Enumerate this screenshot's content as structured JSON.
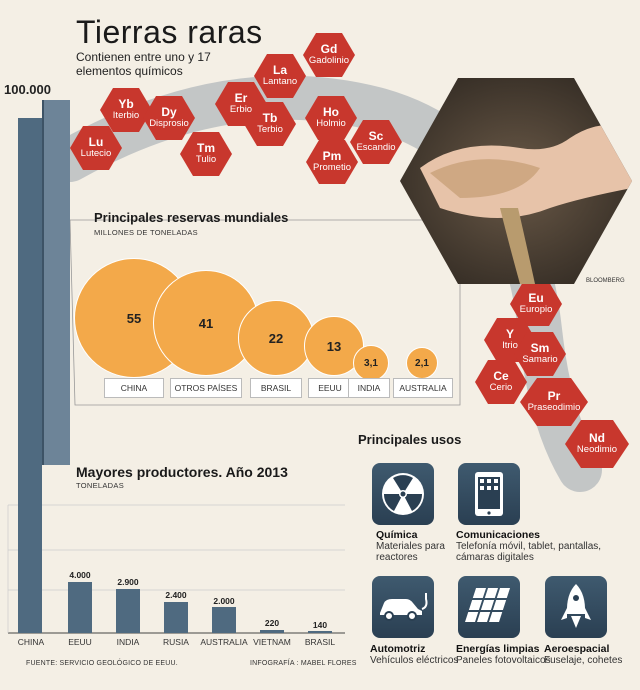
{
  "title": "Tierras raras",
  "subtitle": "Contienen entre uno y 17 elementos químicos",
  "big_value": "100.000",
  "elements": [
    {
      "sym": "Gd",
      "name": "Gadolinio"
    },
    {
      "sym": "La",
      "name": "Lantano"
    },
    {
      "sym": "Yb",
      "name": "Iterbio"
    },
    {
      "sym": "Dy",
      "name": "Disprosio"
    },
    {
      "sym": "Er",
      "name": "Erbio"
    },
    {
      "sym": "Tb",
      "name": "Terbio"
    },
    {
      "sym": "Ho",
      "name": "Holmio"
    },
    {
      "sym": "Lu",
      "name": "Lutecio"
    },
    {
      "sym": "Tm",
      "name": "Tulio"
    },
    {
      "sym": "Sc",
      "name": "Escandio"
    },
    {
      "sym": "Pm",
      "name": "Prometio"
    },
    {
      "sym": "Eu",
      "name": "Europio"
    },
    {
      "sym": "Y",
      "name": "Itrio"
    },
    {
      "sym": "Sm",
      "name": "Samario"
    },
    {
      "sym": "Ce",
      "name": "Cerio"
    },
    {
      "sym": "Pr",
      "name": "Praseodimio"
    },
    {
      "sym": "Nd",
      "name": "Neodimio"
    }
  ],
  "photo_credit": "BLOOMBERG",
  "reserves": {
    "title": "Principales reservas mundiales",
    "unit": "MILLONES DE TONELADAS",
    "items": [
      {
        "label": "CHINA",
        "value": "55"
      },
      {
        "label": "OTROS PAÍSES",
        "value": "41"
      },
      {
        "label": "BRASIL",
        "value": "22"
      },
      {
        "label": "EEUU",
        "value": "13"
      },
      {
        "label": "INDIA",
        "value": "3,1"
      },
      {
        "label": "AUSTRALIA",
        "value": "2,1"
      }
    ]
  },
  "producers": {
    "title": "Mayores productores. Año 2013",
    "unit": "TONELADAS",
    "items": [
      {
        "label": "CHINA",
        "value": "100.000"
      },
      {
        "label": "EEUU",
        "value": "4.000"
      },
      {
        "label": "INDIA",
        "value": "2.900"
      },
      {
        "label": "RUSIA",
        "value": "2.400"
      },
      {
        "label": "AUSTRALIA",
        "value": "2.000"
      },
      {
        "label": "VIETNAM",
        "value": "220"
      },
      {
        "label": "BRASIL",
        "value": "140"
      }
    ]
  },
  "uses": {
    "title": "Principales usos",
    "items": [
      {
        "icon": "radiation-icon",
        "title": "Química",
        "desc": "Materiales para reactores"
      },
      {
        "icon": "phone-icon",
        "title": "Comunicaciones",
        "desc": "Telefonía móvil, tablet, pantallas, cámaras digitales"
      },
      {
        "icon": "electric-car-icon",
        "title": "Automotriz",
        "desc": "Vehículos eléctricos"
      },
      {
        "icon": "solar-panel-icon",
        "title": "Energías limpias",
        "desc": "Paneles fotovoltaicos"
      },
      {
        "icon": "rocket-icon",
        "title": "Aeroespacial",
        "desc": "Fuselaje, cohetes"
      }
    ]
  },
  "source": "FUENTE:  SERVICIO GEOLÓGICO DE EEUU.",
  "credit": "INFOGRAFÍA : MABEL FLORES",
  "colors": {
    "hex": "#c8372d",
    "bubble": "#f3a94a",
    "bar": "#4f6a80",
    "arc": "#8a96a0"
  }
}
